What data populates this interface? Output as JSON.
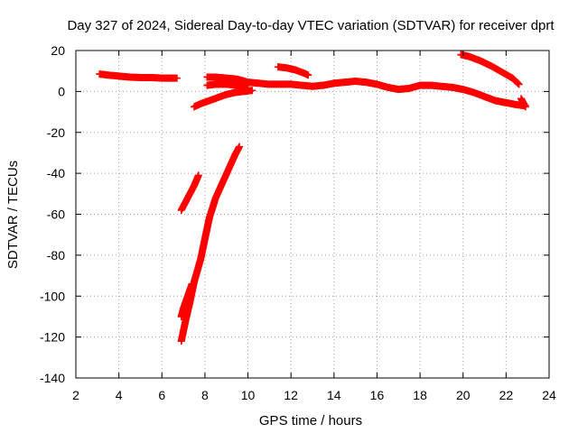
{
  "chart_data": {
    "type": "scatter",
    "title": "Day 327 of 2024, Sidereal Day-to-day VTEC variation (SDTVAR) for receiver dprt",
    "xlabel": "GPS time / hours",
    "ylabel": "SDTVAR / TECUs",
    "xlim": [
      2,
      24
    ],
    "ylim": [
      -140,
      20
    ],
    "xticks": [
      "2",
      "4",
      "6",
      "8",
      "10",
      "12",
      "14",
      "16",
      "18",
      "20",
      "22",
      "24"
    ],
    "yticks": [
      "20",
      "0",
      "-20",
      "-40",
      "-60",
      "-80",
      "-100",
      "-120",
      "-140"
    ],
    "grid": true,
    "marker_color": "#ff0000",
    "series": [
      {
        "x": [
          3.1,
          3.5,
          4.0,
          4.5,
          5.0,
          5.5,
          6.0,
          6.5,
          6.7
        ],
        "y": [
          8.5,
          8.0,
          7.5,
          7.0,
          6.8,
          6.8,
          6.5,
          6.5,
          6.5
        ]
      },
      {
        "x": [
          7.5,
          7.8,
          8.2,
          8.6,
          9.0,
          9.4,
          9.8,
          10.2
        ],
        "y": [
          -7.5,
          -6.0,
          -4.5,
          -3.0,
          -1.5,
          -0.5,
          0.0,
          0.5
        ]
      },
      {
        "x": [
          8.1,
          8.5,
          9.0,
          9.5,
          10.0,
          10.5,
          11.0,
          11.5,
          12.0,
          12.5,
          13.0,
          13.5,
          14.0,
          14.5,
          15.0,
          15.5,
          16.0,
          16.5,
          17.0,
          17.5,
          18.0,
          18.5,
          19.0,
          19.5,
          20.0,
          20.5,
          21.0,
          21.5,
          22.0,
          22.5,
          22.9
        ],
        "y": [
          7.0,
          7.0,
          6.5,
          6.0,
          4.5,
          4.0,
          3.5,
          3.5,
          3.5,
          3.0,
          2.5,
          3.0,
          4.0,
          4.5,
          5.0,
          4.5,
          3.5,
          2.0,
          1.0,
          1.5,
          3.0,
          3.0,
          2.5,
          2.0,
          1.0,
          -0.5,
          -2.5,
          -4.5,
          -5.5,
          -6.5,
          -7.0
        ]
      },
      {
        "x": [
          8.1,
          8.5,
          9.0,
          9.5,
          10.0
        ],
        "y": [
          3.0,
          3.5,
          3.5,
          3.0,
          3.0
        ]
      },
      {
        "x": [
          11.4,
          11.8,
          12.2,
          12.6,
          12.8
        ],
        "y": [
          12.0,
          11.5,
          10.5,
          9.0,
          8.0
        ]
      },
      {
        "x": [
          19.9,
          20.3,
          20.8,
          21.3,
          21.8,
          22.3,
          22.6
        ],
        "y": [
          18.0,
          17.0,
          15.0,
          12.5,
          9.5,
          6.5,
          3.5
        ]
      },
      {
        "x": [
          22.7,
          22.8,
          22.9
        ],
        "y": [
          -3.5,
          -5.5,
          -7.5
        ]
      },
      {
        "x": [
          6.9,
          7.1,
          7.3,
          7.5,
          7.7
        ],
        "y": [
          -58,
          -54,
          -50,
          -46,
          -41
        ]
      },
      {
        "x": [
          6.9,
          7.1,
          7.3,
          7.5,
          7.8,
          8.0,
          8.2,
          8.5,
          8.8,
          9.1,
          9.4,
          9.6
        ],
        "y": [
          -122,
          -112,
          -103,
          -93,
          -82,
          -72,
          -62,
          -52,
          -45,
          -38,
          -31,
          -27
        ]
      },
      {
        "x": [
          6.9,
          7.0,
          7.2,
          7.4
        ],
        "y": [
          -110,
          -106,
          -100,
          -94
        ]
      }
    ]
  }
}
